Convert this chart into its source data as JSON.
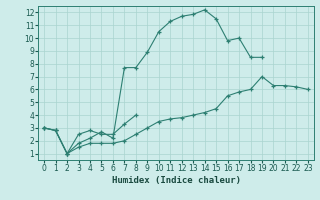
{
  "xlabel": "Humidex (Indice chaleur)",
  "bg_color": "#ceecea",
  "grid_color": "#aad4cf",
  "line_color": "#2d7f72",
  "xlim": [
    -0.5,
    23.5
  ],
  "ylim": [
    0.5,
    12.5
  ],
  "xticks": [
    0,
    1,
    2,
    3,
    4,
    5,
    6,
    7,
    8,
    9,
    10,
    11,
    12,
    13,
    14,
    15,
    16,
    17,
    18,
    19,
    20,
    21,
    22,
    23
  ],
  "yticks": [
    1,
    2,
    3,
    4,
    5,
    6,
    7,
    8,
    9,
    10,
    11,
    12
  ],
  "line1_x": [
    0,
    1,
    2,
    3,
    4,
    5,
    6,
    7,
    8,
    9,
    10,
    11,
    12,
    13,
    14,
    15,
    16,
    17,
    18,
    19
  ],
  "line1_y": [
    3.0,
    2.8,
    1.0,
    1.8,
    2.2,
    2.7,
    2.2,
    7.7,
    7.7,
    8.9,
    10.5,
    11.3,
    11.7,
    11.85,
    12.2,
    11.5,
    9.8,
    10.0,
    8.5,
    8.5
  ],
  "line2_x": [
    0,
    1,
    2,
    3,
    4,
    5,
    6,
    7,
    8
  ],
  "line2_y": [
    3.0,
    2.8,
    1.0,
    2.5,
    2.8,
    2.5,
    2.5,
    3.3,
    4.0
  ],
  "line3_x": [
    0,
    1,
    2,
    3,
    4,
    5,
    6,
    7,
    8,
    9,
    10,
    11,
    12,
    13,
    14,
    15,
    16,
    17,
    18,
    19,
    20,
    21,
    22,
    23
  ],
  "line3_y": [
    3.0,
    2.8,
    1.0,
    1.5,
    1.8,
    1.8,
    1.8,
    2.0,
    2.5,
    3.0,
    3.5,
    3.7,
    3.8,
    4.0,
    4.2,
    4.5,
    5.5,
    5.8,
    6.0,
    7.0,
    6.3,
    6.3,
    6.2,
    6.0
  ],
  "xlabel_fontsize": 6.5,
  "tick_fontsize": 5.5
}
